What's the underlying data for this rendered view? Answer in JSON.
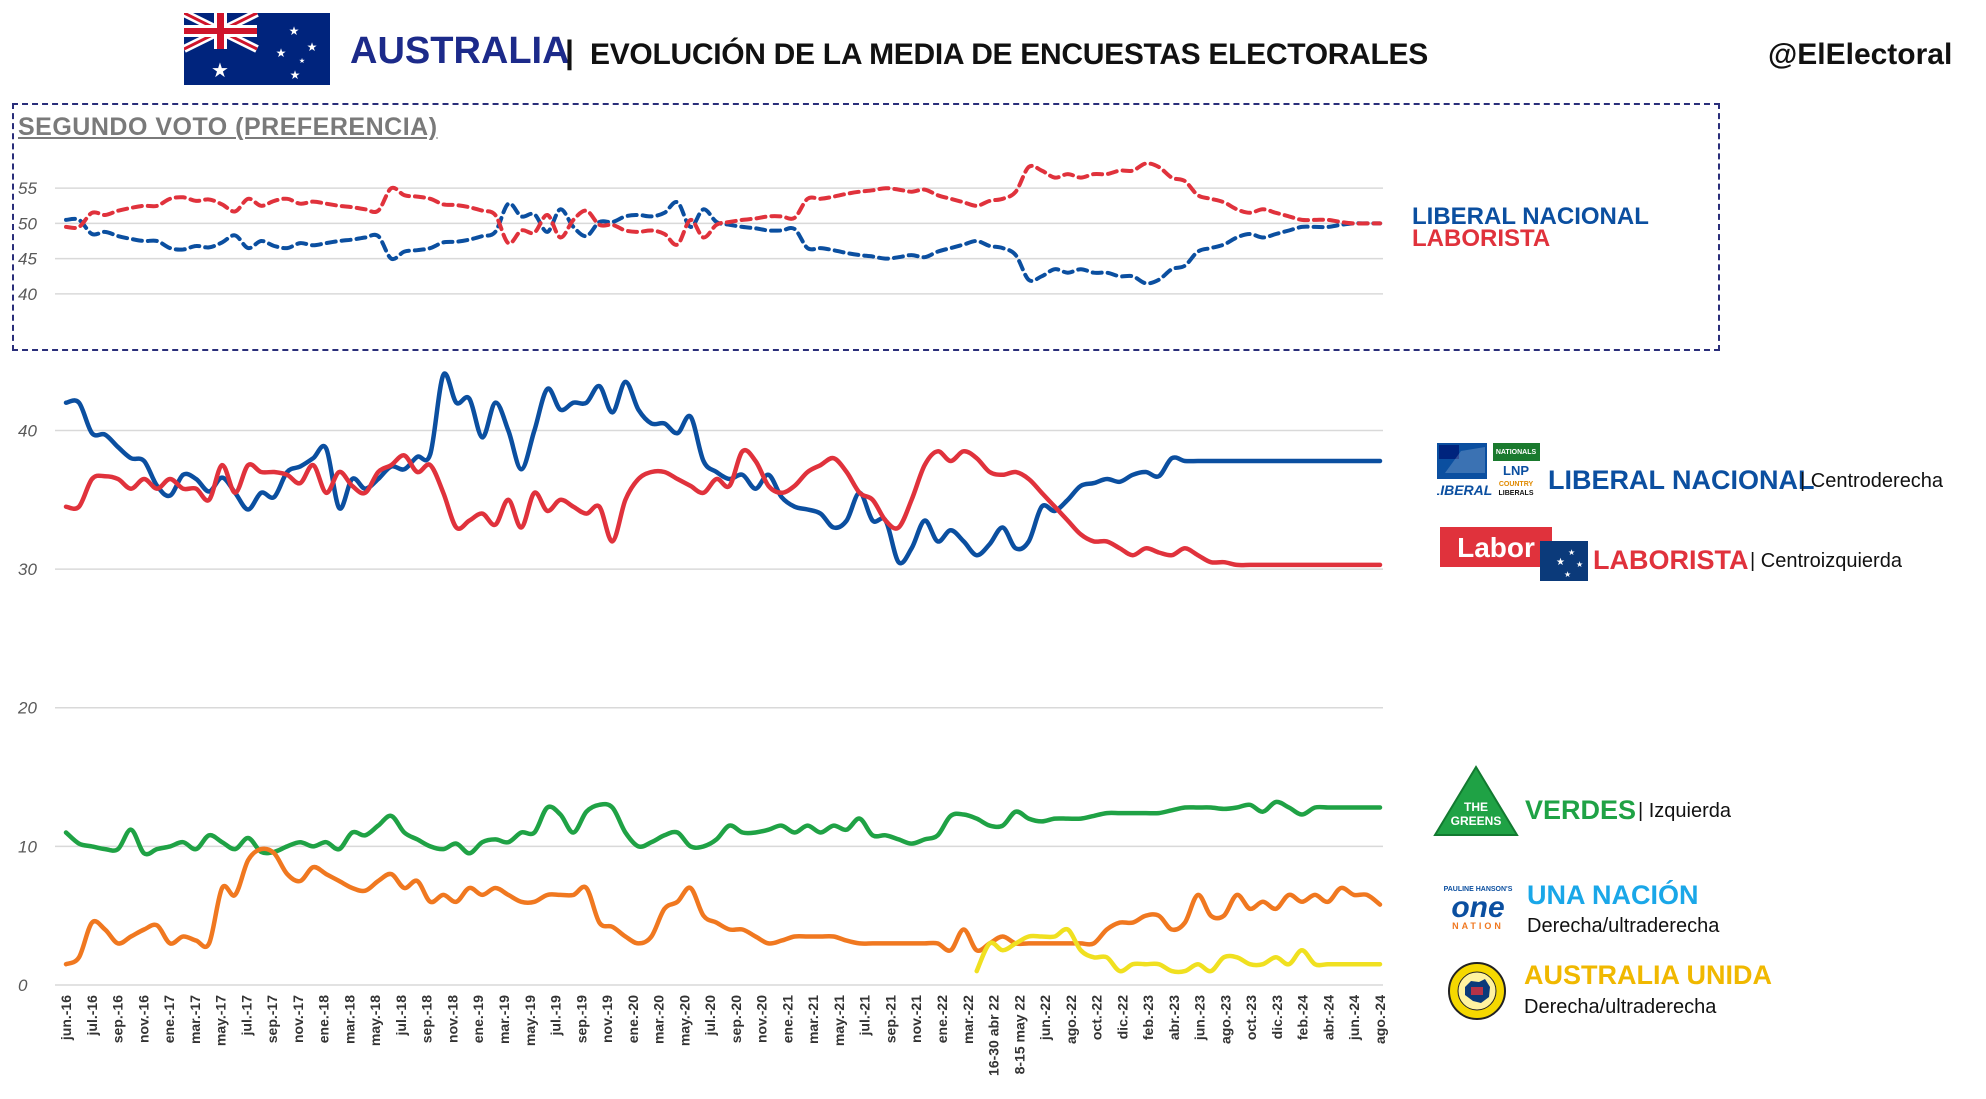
{
  "header": {
    "country": "AUSTRALIA",
    "separator": "|",
    "title": "EVOLUCIÓN DE LA MEDIA DE ENCUESTAS ELECTORALES",
    "handle": "@ElElectoral"
  },
  "colors": {
    "liberal": "#0b4fa0",
    "labor": "#e0323c",
    "greens": "#1fa245",
    "one_nation": "#f07820",
    "uap": "#f0e020",
    "grid": "#d9d9d9",
    "axis_text": "#595959"
  },
  "legend": {
    "top": {
      "liberal": "LIBERAL NACIONAL",
      "labor": "LABORISTA"
    },
    "parties": [
      {
        "key": "liberal",
        "name": "LIBERAL NACIONAL",
        "desc": "| Centroderecha",
        "logo": "liberal-lnp-logo",
        "logo_text": [
          "LIBERAL",
          "NATIONALS",
          "LNP",
          "COUNTRY",
          "LIBERALS"
        ]
      },
      {
        "key": "labor",
        "name": "LABORISTA",
        "desc": "| Centroizquierda",
        "logo": "labor-logo",
        "logo_text": [
          "Labor"
        ]
      },
      {
        "key": "greens",
        "name": "VERDES",
        "desc": "| Izquierda",
        "logo": "greens-logo",
        "logo_text": [
          "THE",
          "GREENS"
        ]
      },
      {
        "key": "one_nation",
        "name": "UNA NACIÓN",
        "desc": "Derecha/ultraderecha",
        "logo": "one-nation-logo",
        "logo_text": [
          "PAULINE HANSON'S",
          "one",
          "NATION"
        ]
      },
      {
        "key": "uap",
        "name": "AUSTRALIA UNIDA",
        "desc": "Derecha/ultraderecha",
        "logo": "united-australia-logo",
        "logo_text": []
      }
    ]
  },
  "chart_data": [
    {
      "type": "line",
      "title": "SEGUNDO VOTO (PREFERENCIA)",
      "ylim": [
        37,
        59
      ],
      "yticks": [
        40,
        45,
        50,
        55
      ],
      "grid": true,
      "legend_position": "right",
      "x": [
        0,
        1,
        2,
        3,
        4,
        5,
        6,
        7,
        8,
        9,
        10,
        11,
        12,
        13,
        14,
        15,
        16,
        17,
        18,
        19,
        20,
        21,
        22,
        23,
        24,
        25,
        26,
        27,
        28,
        29,
        30,
        31,
        32,
        33,
        34,
        35,
        36,
        37,
        38,
        39,
        40,
        41,
        42,
        43,
        44,
        45,
        46,
        47,
        48,
        49,
        50,
        51,
        52,
        53,
        54,
        55,
        56,
        57,
        58,
        59,
        60,
        61,
        62,
        63,
        64,
        65,
        66,
        67,
        68,
        69,
        70,
        71,
        72,
        73,
        74,
        75,
        76,
        77,
        78,
        79,
        80,
        81,
        82,
        83,
        84,
        85,
        86,
        87,
        88,
        89,
        90,
        91,
        92,
        93,
        94,
        95,
        96,
        97,
        98,
        99,
        100,
        101
      ],
      "series": [
        {
          "name": "LIBERAL NACIONAL",
          "key": "liberal",
          "style": "dashed",
          "values": [
            50.5,
            50.5,
            48.5,
            48.8,
            48.2,
            47.8,
            47.5,
            47.5,
            46.5,
            46.3,
            46.8,
            46.6,
            47.3,
            48.3,
            46.5,
            47.5,
            46.8,
            46.5,
            47.2,
            46.9,
            47.2,
            47.5,
            47.7,
            48.0,
            48.2,
            45.0,
            46.0,
            46.2,
            46.5,
            47.3,
            47.4,
            47.7,
            48.2,
            48.8,
            52.8,
            51.0,
            51.3,
            48.8,
            52.0,
            49.5,
            48.2,
            50.2,
            50.2,
            51.0,
            51.2,
            51.0,
            51.5,
            53.0,
            49.5,
            52.0,
            50.2,
            49.8,
            49.5,
            49.3,
            49.0,
            49.0,
            49.2,
            46.5,
            46.5,
            46.2,
            45.8,
            45.5,
            45.3,
            45.0,
            45.2,
            45.5,
            45.2,
            46.0,
            46.5,
            47.0,
            47.5,
            46.8,
            46.5,
            45.5,
            42.0,
            42.5,
            43.5,
            43.0,
            43.5,
            43.0,
            43.0,
            42.5,
            42.5,
            41.5,
            42.0,
            43.5,
            44.0,
            46.0,
            46.5,
            47.0,
            48.0,
            48.5,
            48.0,
            48.5,
            49.0,
            49.5,
            49.5,
            49.5,
            49.8,
            50.0,
            50.0,
            50.0
          ]
        },
        {
          "name": "LABORISTA",
          "key": "labor",
          "style": "dashed",
          "values": [
            49.5,
            49.5,
            51.5,
            51.2,
            51.8,
            52.2,
            52.5,
            52.5,
            53.5,
            53.7,
            53.2,
            53.4,
            52.7,
            51.7,
            53.5,
            52.5,
            53.2,
            53.5,
            52.8,
            53.1,
            52.8,
            52.5,
            52.3,
            52.0,
            51.8,
            55.0,
            54.0,
            53.8,
            53.5,
            52.7,
            52.6,
            52.3,
            51.8,
            51.2,
            47.2,
            49.0,
            48.7,
            51.2,
            48.0,
            50.5,
            51.8,
            49.8,
            49.8,
            49.0,
            48.8,
            49.0,
            48.5,
            47.0,
            50.5,
            48.0,
            49.8,
            50.2,
            50.5,
            50.7,
            51.0,
            51.0,
            50.8,
            53.5,
            53.5,
            53.8,
            54.2,
            54.5,
            54.7,
            55.0,
            54.8,
            54.5,
            54.8,
            54.0,
            53.5,
            53.0,
            52.5,
            53.2,
            53.5,
            54.5,
            58.0,
            57.5,
            56.5,
            57.0,
            56.5,
            57.0,
            57.0,
            57.5,
            57.5,
            58.5,
            58.0,
            56.5,
            56.0,
            54.0,
            53.5,
            53.0,
            52.0,
            51.5,
            52.0,
            51.5,
            51.0,
            50.5,
            50.5,
            50.5,
            50.2,
            50.0,
            50.0,
            50.0
          ]
        }
      ]
    },
    {
      "type": "line",
      "ylim": [
        0,
        44
      ],
      "yticks": [
        0,
        10,
        20,
        30,
        40
      ],
      "grid": true,
      "legend_position": "right",
      "categories": [
        "jun.-16",
        "jul.-16",
        "sep.-16",
        "nov.-16",
        "ene.-17",
        "mar.-17",
        "may.-17",
        "jul.-17",
        "sep.-17",
        "nov.-17",
        "ene.-18",
        "mar.-18",
        "may.-18",
        "jul.-18",
        "sep.-18",
        "nov.-18",
        "ene.-19",
        "mar.-19",
        "may.-19",
        "jul.-19",
        "sep.-19",
        "nov.-19",
        "ene.-20",
        "mar.-20",
        "may.-20",
        "jul.-20",
        "sep.-20",
        "nov.-20",
        "ene.-21",
        "mar.-21",
        "may.-21",
        "jul.-21",
        "sep.-21",
        "nov.-21",
        "ene.-22",
        "mar.-22",
        "16-30 abr 22",
        "8-15 may 22",
        "jun.-22",
        "ago.-22",
        "oct.-22",
        "dic.-22",
        "feb.-23",
        "abr.-23",
        "jun.-23",
        "ago.-23",
        "oct.-23",
        "dic.-23",
        "feb.-24",
        "abr.-24",
        "jun.-24",
        "ago.-24"
      ],
      "x": [
        0,
        1,
        2,
        3,
        4,
        5,
        6,
        7,
        8,
        9,
        10,
        11,
        12,
        13,
        14,
        15,
        16,
        17,
        18,
        19,
        20,
        21,
        22,
        23,
        24,
        25,
        26,
        27,
        28,
        29,
        30,
        31,
        32,
        33,
        34,
        35,
        36,
        37,
        38,
        39,
        40,
        41,
        42,
        43,
        44,
        45,
        46,
        47,
        48,
        49,
        50,
        51,
        52,
        53,
        54,
        55,
        56,
        57,
        58,
        59,
        60,
        61,
        62,
        63,
        64,
        65,
        66,
        67,
        68,
        69,
        70,
        71,
        72,
        73,
        74,
        75,
        76,
        77,
        78,
        79,
        80,
        81,
        82,
        83,
        84,
        85,
        86,
        87,
        88,
        89,
        90,
        91,
        92,
        93,
        94,
        95,
        96,
        97,
        98,
        99,
        100,
        101
      ],
      "series": [
        {
          "name": "LIBERAL NACIONAL",
          "key": "liberal",
          "values": [
            42.0,
            42.0,
            39.8,
            39.7,
            38.8,
            38.0,
            37.8,
            36.0,
            35.3,
            36.8,
            36.5,
            35.6,
            36.6,
            35.5,
            34.3,
            35.5,
            35.2,
            37.0,
            37.4,
            38.0,
            38.7,
            34.4,
            36.5,
            35.8,
            36.5,
            37.4,
            37.2,
            38.1,
            38.3,
            44.0,
            42.0,
            42.3,
            39.5,
            42.0,
            40.0,
            37.2,
            40.0,
            43.0,
            41.5,
            42.0,
            42.0,
            43.2,
            41.3,
            43.5,
            41.5,
            40.5,
            40.5,
            39.8,
            41.0,
            37.8,
            37.0,
            36.5,
            36.8,
            35.8,
            36.8,
            35.2,
            34.5,
            34.3,
            34.0,
            33.0,
            33.5,
            35.5,
            33.5,
            33.5,
            30.5,
            31.5,
            33.5,
            32.0,
            32.8,
            32.0,
            31.0,
            31.8,
            33.0,
            31.5,
            32.0,
            34.5,
            34.2,
            35.0,
            36.0,
            36.2,
            36.5,
            36.3,
            36.8,
            37.0,
            36.7,
            38.0,
            37.8,
            37.8,
            37.8,
            37.8,
            37.8,
            37.8,
            37.8,
            37.8,
            37.8,
            37.8,
            37.8,
            37.8,
            37.8,
            37.8,
            37.8,
            37.8
          ]
        },
        {
          "name": "LABORISTA",
          "key": "labor",
          "values": [
            34.5,
            34.5,
            36.5,
            36.7,
            36.5,
            35.8,
            36.5,
            35.8,
            36.5,
            35.8,
            35.8,
            35.0,
            37.5,
            35.5,
            37.5,
            37.0,
            37.0,
            36.8,
            36.2,
            37.5,
            35.5,
            37.0,
            36.0,
            35.5,
            37.0,
            37.5,
            38.2,
            37.0,
            37.5,
            35.5,
            33.0,
            33.5,
            34.0,
            33.2,
            35.0,
            33.0,
            35.5,
            34.2,
            35.0,
            34.5,
            34.0,
            34.5,
            32.0,
            35.0,
            36.5,
            37.0,
            37.0,
            36.5,
            36.0,
            35.5,
            36.5,
            36.0,
            38.5,
            37.8,
            36.0,
            35.5,
            36.0,
            37.0,
            37.5,
            38.0,
            37.0,
            35.5,
            35.0,
            33.5,
            33.0,
            35.0,
            37.5,
            38.5,
            37.8,
            38.5,
            38.0,
            37.0,
            36.8,
            37.0,
            36.5,
            35.5,
            34.5,
            33.5,
            32.5,
            32.0,
            32.0,
            31.5,
            31.0,
            31.5,
            31.2,
            31.0,
            31.5,
            31.0,
            30.5,
            30.5,
            30.3,
            30.3,
            30.3,
            30.3,
            30.3,
            30.3,
            30.3,
            30.3,
            30.3,
            30.3,
            30.3,
            30.3
          ]
        },
        {
          "name": "VERDES",
          "key": "greens",
          "values": [
            11.0,
            10.2,
            10.0,
            9.8,
            9.8,
            11.2,
            9.5,
            9.8,
            10.0,
            10.3,
            9.8,
            10.8,
            10.3,
            9.8,
            10.6,
            9.6,
            9.6,
            10.0,
            10.3,
            10.0,
            10.3,
            9.8,
            11.0,
            10.8,
            11.5,
            12.2,
            11.0,
            10.5,
            10.0,
            9.8,
            10.2,
            9.5,
            10.3,
            10.5,
            10.3,
            11.0,
            11.0,
            12.8,
            12.3,
            11.0,
            12.5,
            13.0,
            12.8,
            11.0,
            10.0,
            10.3,
            10.8,
            11.0,
            10.0,
            10.0,
            10.5,
            11.5,
            11.0,
            11.0,
            11.2,
            11.5,
            11.0,
            11.5,
            11.0,
            11.5,
            11.2,
            12.0,
            10.8,
            10.8,
            10.5,
            10.2,
            10.5,
            10.8,
            12.2,
            12.3,
            12.0,
            11.5,
            11.5,
            12.5,
            12.0,
            11.8,
            12.0,
            12.0,
            12.0,
            12.2,
            12.4,
            12.4,
            12.4,
            12.4,
            12.4,
            12.6,
            12.8,
            12.8,
            12.8,
            12.7,
            12.8,
            13.0,
            12.5,
            13.2,
            12.8,
            12.3,
            12.8,
            12.8,
            12.8,
            12.8,
            12.8,
            12.8
          ]
        },
        {
          "name": "UNA NACIÓN",
          "key": "one_nation",
          "values": [
            1.5,
            2.0,
            4.5,
            4.0,
            3.0,
            3.5,
            4.0,
            4.3,
            3.0,
            3.5,
            3.2,
            3.0,
            7.0,
            6.5,
            9.0,
            9.8,
            9.5,
            8.0,
            7.5,
            8.5,
            8.0,
            7.5,
            7.0,
            6.8,
            7.5,
            8.0,
            7.0,
            7.5,
            6.0,
            6.5,
            6.0,
            7.0,
            6.5,
            7.0,
            6.5,
            6.0,
            6.0,
            6.5,
            6.5,
            6.5,
            7.0,
            4.5,
            4.2,
            3.5,
            3.0,
            3.5,
            5.5,
            6.0,
            7.0,
            5.0,
            4.5,
            4.0,
            4.0,
            3.5,
            3.0,
            3.2,
            3.5,
            3.5,
            3.5,
            3.5,
            3.2,
            3.0,
            3.0,
            3.0,
            3.0,
            3.0,
            3.0,
            3.0,
            2.5,
            4.0,
            2.5,
            3.0,
            3.5,
            3.0,
            3.0,
            3.0,
            3.0,
            3.0,
            3.0,
            3.0,
            4.0,
            4.5,
            4.5,
            5.0,
            5.0,
            4.0,
            4.5,
            6.5,
            5.0,
            5.0,
            6.5,
            5.5,
            6.0,
            5.5,
            6.5,
            6.0,
            6.5,
            6.0,
            7.0,
            6.5,
            6.5,
            5.8
          ]
        },
        {
          "name": "AUSTRALIA UNIDA",
          "key": "uap",
          "values": [
            null,
            null,
            null,
            null,
            null,
            null,
            null,
            null,
            null,
            null,
            null,
            null,
            null,
            null,
            null,
            null,
            null,
            null,
            null,
            null,
            null,
            null,
            null,
            null,
            null,
            null,
            null,
            null,
            null,
            null,
            null,
            null,
            null,
            null,
            null,
            null,
            null,
            null,
            null,
            null,
            null,
            null,
            null,
            null,
            null,
            null,
            null,
            null,
            null,
            null,
            null,
            null,
            null,
            null,
            null,
            null,
            null,
            null,
            null,
            null,
            null,
            null,
            null,
            null,
            null,
            null,
            null,
            null,
            null,
            null,
            1.0,
            3.0,
            2.5,
            3.0,
            3.5,
            3.5,
            3.5,
            4.0,
            2.5,
            2.0,
            2.0,
            1.0,
            1.5,
            1.5,
            1.5,
            1.0,
            1.0,
            1.5,
            1.0,
            2.0,
            2.0,
            1.5,
            1.5,
            2.0,
            1.5,
            2.5,
            1.5,
            1.5,
            1.5,
            1.5,
            1.5,
            1.5
          ]
        }
      ]
    }
  ]
}
